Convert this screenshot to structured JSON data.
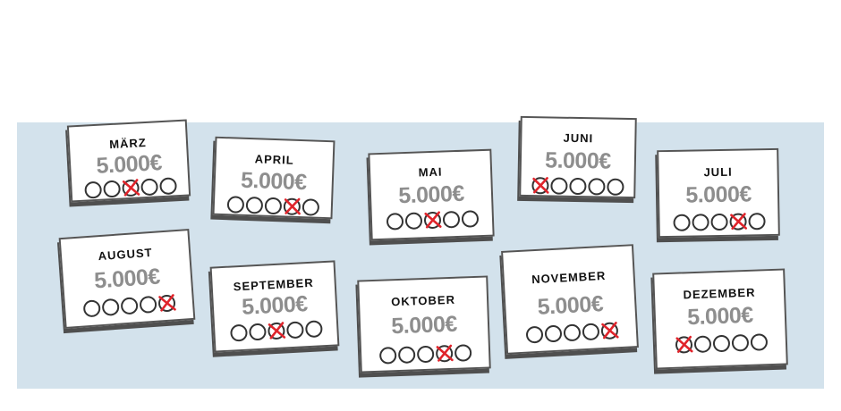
{
  "colors": {
    "board": "#d3e2ec",
    "amount": "#8e8e8e",
    "cross": "#e0242b",
    "border": "#555555"
  },
  "cards": [
    {
      "month": "MÄRZ",
      "amount": "5.000€",
      "circles": 5,
      "crossed": 3
    },
    {
      "month": "APRIL",
      "amount": "5.000€",
      "circles": 5,
      "crossed": 4
    },
    {
      "month": "MAI",
      "amount": "5.000€",
      "circles": 5,
      "crossed": 3
    },
    {
      "month": "JUNI",
      "amount": "5.000€",
      "circles": 5,
      "crossed": 1
    },
    {
      "month": "JULI",
      "amount": "5.000€",
      "circles": 5,
      "crossed": 4
    },
    {
      "month": "AUGUST",
      "amount": "5.000€",
      "circles": 5,
      "crossed": 5
    },
    {
      "month": "SEPTEMBER",
      "amount": "5.000€",
      "circles": 5,
      "crossed": 3
    },
    {
      "month": "OKTOBER",
      "amount": "5.000€",
      "circles": 5,
      "crossed": 4
    },
    {
      "month": "NOVEMBER",
      "amount": "5.000€",
      "circles": 5,
      "crossed": 5
    },
    {
      "month": "DEZEMBER",
      "amount": "5.000€",
      "circles": 5,
      "crossed": 1
    }
  ]
}
